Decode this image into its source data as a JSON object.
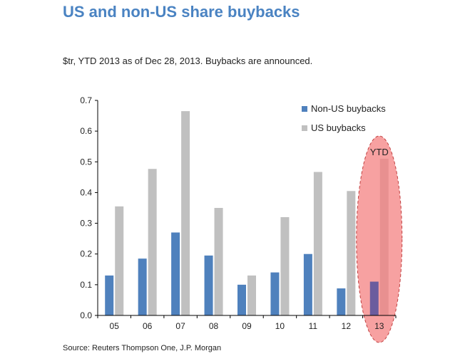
{
  "title": "US and non-US share buybacks",
  "subtitle": "$tr, YTD 2013 as of Dec 28, 2013. Buybacks are announced.",
  "source": "Source: Reuters Thompson One, J.P. Morgan",
  "colors": {
    "title": "#4a83c2",
    "non_us": "#4f81bd",
    "us": "#c0c0c0",
    "highlight_fill": "#f7a1a1",
    "highlight_stroke": "#c04040",
    "non_us_highlighted": "#6b5c9e",
    "us_highlighted": "#e89090"
  },
  "chart_data": {
    "type": "bar",
    "categories": [
      "05",
      "06",
      "07",
      "08",
      "09",
      "10",
      "11",
      "12",
      "13"
    ],
    "series": [
      {
        "name": "Non-US buybacks",
        "values": [
          0.13,
          0.185,
          0.27,
          0.195,
          0.1,
          0.14,
          0.2,
          0.088,
          0.11
        ]
      },
      {
        "name": "US buybacks",
        "values": [
          0.355,
          0.477,
          0.665,
          0.35,
          0.13,
          0.32,
          0.467,
          0.405,
          0.51
        ]
      }
    ],
    "ylim": [
      0,
      0.7
    ],
    "yticks": [
      "0.0",
      "0.1",
      "0.2",
      "0.3",
      "0.4",
      "0.5",
      "0.6",
      "0.7"
    ],
    "legend_position": "top-right",
    "grid": false,
    "annotation": {
      "text": "YTD",
      "category": "13",
      "shape": "ellipse highlight"
    }
  }
}
